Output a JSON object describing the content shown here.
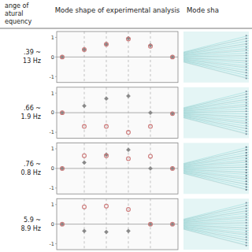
{
  "chart_data": [
    {
      "type": "scatter",
      "annotations": [
        "ange of",
        "atural",
        "equency",
        "Mode shape of experimental analysis",
        "Mode sha"
      ],
      "ylabel": [
        ".39 ~",
        "13 Hz"
      ],
      "x": [
        0,
        1,
        2,
        3,
        4,
        5
      ],
      "series": [
        {
          "color": "#888888",
          "marker": "diamond",
          "values": [
            0.0,
            0.38,
            0.65,
            0.95,
            0.6,
            0.0
          ]
        },
        {
          "color": "#cc7777",
          "marker": "circle-open",
          "values": [
            0.0,
            0.38,
            0.65,
            0.92,
            0.55,
            0.0
          ]
        }
      ],
      "xlim": [
        -0.25,
        5.25
      ],
      "ylim": [
        -1.3,
        1.3
      ],
      "yticks": [
        -1,
        0,
        1
      ],
      "vlines": [
        1,
        2,
        3,
        4
      ],
      "hlines": [
        0
      ],
      "grid": false,
      "tick_labels": "y"
    },
    {
      "type": "scatter",
      "ylabel": [
        ".66 ~",
        "1.9 Hz"
      ],
      "x": [
        0,
        1,
        2,
        3,
        4,
        5
      ],
      "series": [
        {
          "color": "#888888",
          "marker": "diamond",
          "values": [
            0.0,
            0.35,
            0.72,
            0.85,
            0.0,
            -0.05
          ]
        },
        {
          "color": "#cc7777",
          "marker": "circle-open",
          "values": [
            0.0,
            -0.7,
            -0.7,
            -1.0,
            -0.7,
            -0.05
          ]
        }
      ],
      "xlim": [
        -0.25,
        5.25
      ],
      "ylim": [
        -1.3,
        1.3
      ],
      "yticks": [
        -1,
        0,
        1
      ],
      "vlines": [
        1,
        2,
        3,
        4
      ],
      "hlines": [
        0
      ],
      "grid": false,
      "tick_labels": "y"
    },
    {
      "type": "scatter",
      "ylabel": [
        ".76 ~",
        "0.8 Hz"
      ],
      "x": [
        0,
        1,
        2,
        3,
        4,
        5
      ],
      "series": [
        {
          "color": "#888888",
          "marker": "diamond",
          "values": [
            0.0,
            0.3,
            0.7,
            0.95,
            0.0,
            0.0
          ]
        },
        {
          "color": "#cc7777",
          "marker": "circle-open",
          "values": [
            0.0,
            0.65,
            0.65,
            0.5,
            0.62,
            0.0
          ]
        }
      ],
      "xlim": [
        -0.25,
        5.25
      ],
      "ylim": [
        -1.3,
        1.3
      ],
      "yticks": [
        -1,
        0,
        1
      ],
      "vlines": [
        1,
        2,
        3,
        4
      ],
      "hlines": [
        0
      ],
      "grid": false,
      "tick_labels": "y"
    },
    {
      "type": "scatter",
      "ylabel": [
        "5.9 ~",
        "8.9 Hz"
      ],
      "x": [
        0,
        1,
        2,
        3,
        4,
        5
      ],
      "series": [
        {
          "color": "#888888",
          "marker": "diamond",
          "values": [
            0.0,
            -0.35,
            -0.4,
            -0.35,
            0.0,
            0.0
          ]
        },
        {
          "color": "#cc7777",
          "marker": "circle-open",
          "values": [
            0.0,
            0.88,
            0.92,
            0.75,
            0.0,
            0.0
          ]
        }
      ],
      "xlim": [
        -0.25,
        5.25
      ],
      "ylim": [
        -1.3,
        1.3
      ],
      "yticks": [
        -1,
        0,
        1
      ],
      "vlines": [
        1,
        2,
        3,
        4
      ],
      "hlines": [
        0
      ],
      "grid": false,
      "tick_labels": "y"
    }
  ]
}
